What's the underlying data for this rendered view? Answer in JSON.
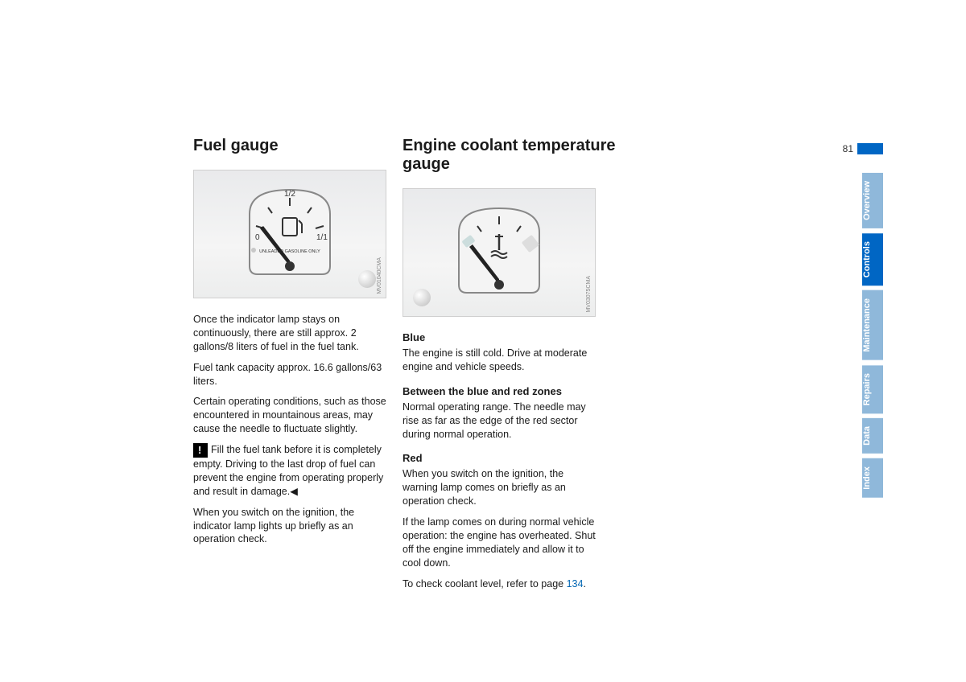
{
  "page_number": "81",
  "side_tabs": [
    {
      "label": "Overview",
      "active": false
    },
    {
      "label": "Controls",
      "active": true
    },
    {
      "label": "Maintenance",
      "active": false
    },
    {
      "label": "Repairs",
      "active": false
    },
    {
      "label": "Data",
      "active": false
    },
    {
      "label": "Index",
      "active": false
    }
  ],
  "left_col": {
    "title": "Fuel gauge",
    "gauge": {
      "labels": [
        "0",
        "1/2",
        "1/1"
      ],
      "caption": "UNLEADED GASOLINE ONLY",
      "credit": "MV01040CMA"
    },
    "p1": "Once the indicator lamp stays on continuously, there are still approx. 2 gallons/8 liters of fuel in the fuel tank.",
    "p2": "Fuel tank capacity approx. 16.6 gallons/63 liters.",
    "p3": "Certain operating conditions, such as those encountered in mountainous areas, may cause the needle to fluctuate slightly.",
    "warn": "Fill the fuel tank before it is completely empty. Driving to the last drop of fuel can prevent the engine from operating properly and result in damage.◀",
    "p4": "When you switch on the ignition, the indicator lamp lights up briefly as an operation check."
  },
  "right_col": {
    "title": "Engine coolant temperature gauge",
    "gauge": {
      "credit": "MV03075CMA"
    },
    "sec1_h": "Blue",
    "sec1_p": "The engine is still cold. Drive at moderate engine and vehicle speeds.",
    "sec2_h": "Between the blue and red zones",
    "sec2_p": "Normal operating range. The needle may rise as far as the edge of the red sector during normal operation.",
    "sec3_h": "Red",
    "sec3_p1": "When you switch on the ignition, the warning lamp comes on briefly as an operation check.",
    "sec3_p2": "If the lamp comes on during normal vehicle operation: the engine has overheated. Shut off the engine immediately and allow it to cool down.",
    "sec3_p3a": "To check coolant level, refer to page ",
    "sec3_link": "134",
    "sec3_p3b": "."
  }
}
